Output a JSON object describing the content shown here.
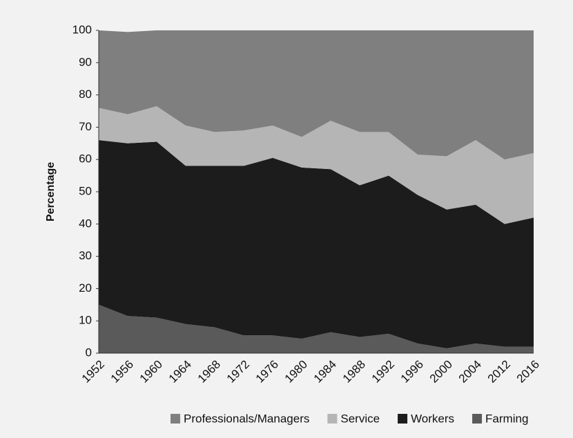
{
  "chart_data": {
    "type": "stacked_area",
    "y_label": "Percentage",
    "categories": [
      "1952",
      "1956",
      "1960",
      "1964",
      "1968",
      "1972",
      "1976",
      "1980",
      "1984",
      "1988",
      "1992",
      "1996",
      "2000",
      "2004",
      "2012",
      "2016"
    ],
    "series": [
      {
        "name": "Professionals/Managers",
        "color": "#7f7f7f",
        "values": [
          24,
          25.5,
          23.5,
          29.5,
          31.5,
          31,
          29.5,
          33,
          28,
          31.5,
          31.5,
          38.5,
          39,
          34,
          40,
          38
        ]
      },
      {
        "name": "Service",
        "color": "#b5b5b5",
        "values": [
          10,
          9,
          11,
          12.5,
          10.5,
          11,
          10,
          9.5,
          15,
          16.5,
          13.5,
          12.5,
          16.5,
          20,
          20,
          20
        ]
      },
      {
        "name": "Workers",
        "color": "#1c1c1c",
        "values": [
          51,
          53.5,
          54.5,
          49,
          50,
          52.5,
          55,
          53,
          50.5,
          47,
          49,
          46,
          43,
          43,
          38,
          40
        ]
      },
      {
        "name": "Farming",
        "color": "#5a5a5a",
        "values": [
          15,
          11.5,
          11,
          9,
          8,
          5.5,
          5.5,
          4.5,
          6.5,
          5,
          6,
          3,
          1.5,
          3,
          2,
          2
        ]
      }
    ],
    "ylim": [
      0,
      100
    ],
    "yticks": [
      0,
      10,
      20,
      30,
      40,
      50,
      60,
      70,
      80,
      90,
      100
    ],
    "legend": "bottom"
  }
}
